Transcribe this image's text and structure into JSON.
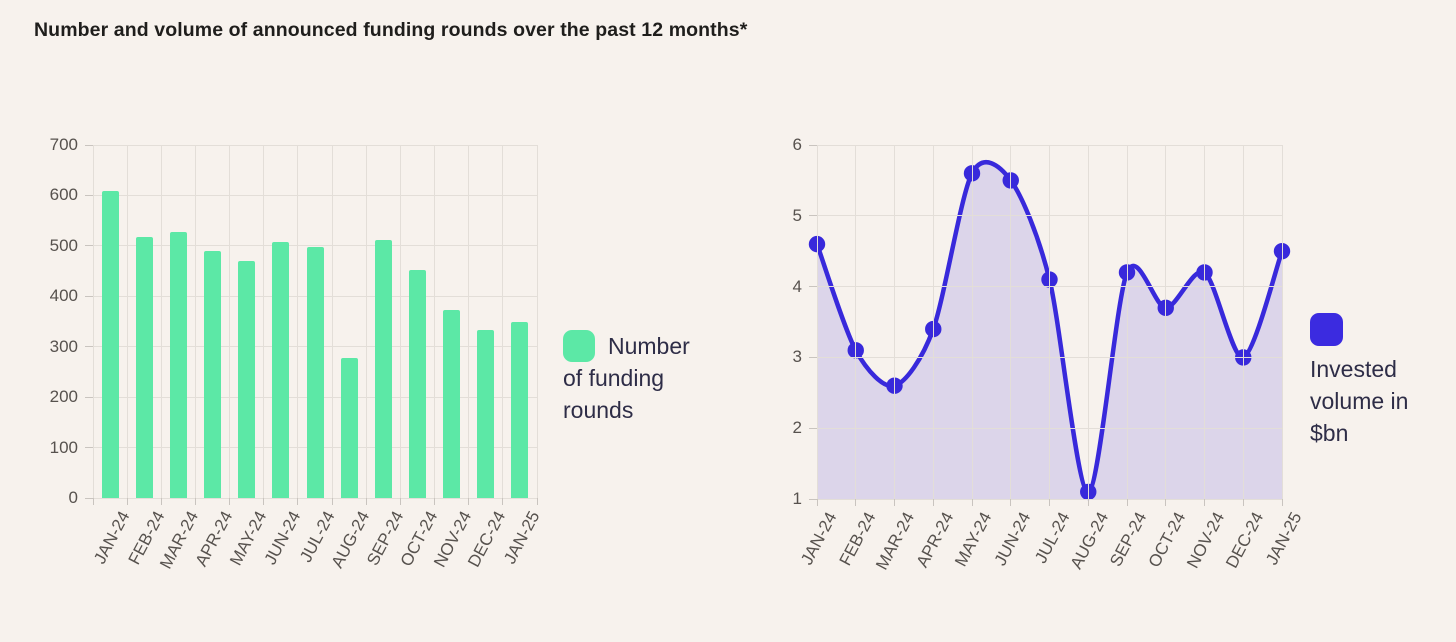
{
  "page": {
    "title": "Number and volume of announced funding rounds over the past 12 months*",
    "background_color": "#f7f2ed",
    "grid_color": "#e3ded8",
    "axis_text_color": "#57524e"
  },
  "chart_data": [
    {
      "type": "bar",
      "categories": [
        "JAN-24",
        "FEB-24",
        "MAR-24",
        "APR-24",
        "MAY-24",
        "JUN-24",
        "JUL-24",
        "AUG-24",
        "SEP-24",
        "OCT-24",
        "NOV-24",
        "DEC-24",
        "JAN-25"
      ],
      "values": [
        608,
        518,
        528,
        490,
        470,
        507,
        497,
        277,
        512,
        452,
        372,
        333,
        349
      ],
      "ylim": [
        0,
        700
      ],
      "yticks": [
        0,
        100,
        200,
        300,
        400,
        500,
        600,
        700
      ],
      "grid": "on",
      "bar_color": "#5ce8a6",
      "legend_position": "right",
      "legend": {
        "label": "Number of funding rounds",
        "lines": [
          "Number",
          "of funding",
          "rounds"
        ],
        "swatch_color": "#5ce8a6"
      }
    },
    {
      "type": "line",
      "categories": [
        "JAN-24",
        "FEB-24",
        "MAR-24",
        "APR-24",
        "MAY-24",
        "JUN-24",
        "JUL-24",
        "AUG-24",
        "SEP-24",
        "OCT-24",
        "NOV-24",
        "DEC-24",
        "JAN-25"
      ],
      "values": [
        4.6,
        3.1,
        2.6,
        3.4,
        5.6,
        5.5,
        4.1,
        1.1,
        4.2,
        3.7,
        4.2,
        3.0,
        4.5
      ],
      "ylim": [
        1,
        6
      ],
      "yticks": [
        1,
        2,
        3,
        4,
        5,
        6
      ],
      "grid": "on",
      "line_color": "#3829db",
      "point_color": "#3829db",
      "fill_color": "rgba(56,41,219,0.14)",
      "smooth": true,
      "legend_position": "right",
      "legend": {
        "label": "Invested volume in $bn",
        "lines": [
          "Invested",
          "volume in",
          "$bn"
        ],
        "swatch_color": "#3b2be0"
      }
    }
  ]
}
